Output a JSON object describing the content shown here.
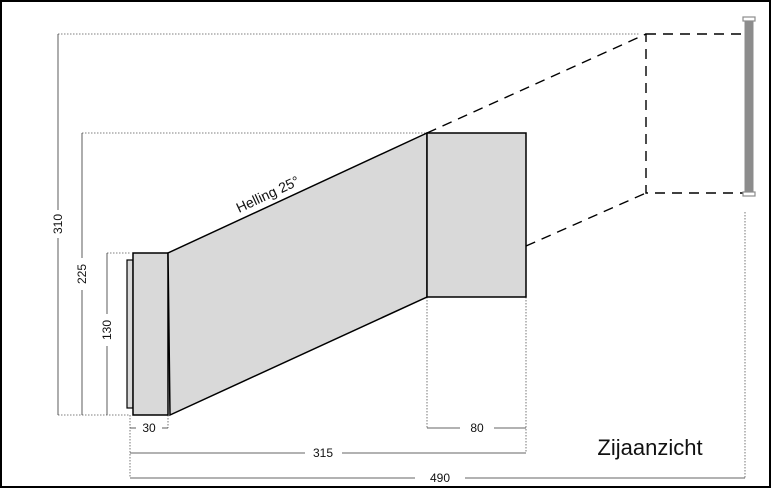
{
  "view_title": "Zijaanzicht",
  "slope_label": "Helling 25°",
  "dimensions": {
    "total_height": "310",
    "mid_height": "225",
    "inlet_height": "130",
    "inlet_width": "30",
    "box_width": "80",
    "length_to_box": "315",
    "total_length": "490"
  },
  "colors": {
    "fill": "#d9d9d9",
    "outline": "#000000",
    "dim_line": "#555555",
    "wall": "#8c8c8c"
  }
}
